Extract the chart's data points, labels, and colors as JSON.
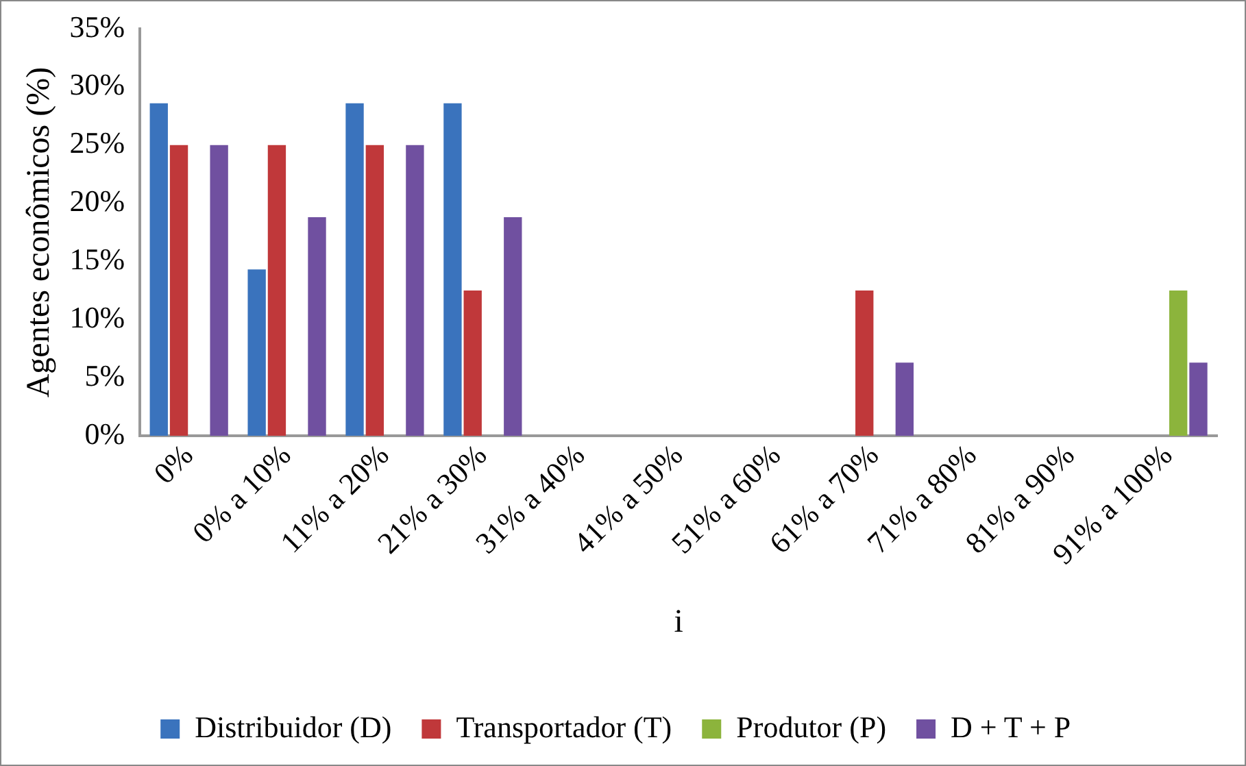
{
  "chart_data": {
    "type": "bar",
    "xlabel": "i",
    "ylabel": "Agentes econômicos (%)",
    "categories": [
      "0%",
      "0% a 10%",
      "11% a 20%",
      "21% a 30%",
      "31% a 40%",
      "41% a 50%",
      "51% a 60%",
      "61% a 70%",
      "71% a 80%",
      "81% a 90%",
      "91% a 100%"
    ],
    "series": [
      {
        "name": "Distribuidor (D)",
        "color": "#3a73bd",
        "values": [
          28.6,
          14.3,
          28.6,
          28.6,
          0,
          0,
          0,
          0,
          0,
          0,
          0
        ]
      },
      {
        "name": "Transportador (T)",
        "color": "#c0383a",
        "values": [
          25,
          25,
          25,
          12.5,
          0,
          0,
          0,
          12.5,
          0,
          0,
          0
        ]
      },
      {
        "name": "Produtor (P)",
        "color": "#8cb43c",
        "values": [
          0,
          0,
          0,
          0,
          0,
          0,
          0,
          0,
          0,
          0,
          12.5
        ]
      },
      {
        "name": "D + T + P",
        "color": "#7050a0",
        "values": [
          25,
          18.8,
          25,
          18.8,
          0,
          0,
          0,
          6.3,
          0,
          0,
          6.3
        ]
      }
    ],
    "ylim": [
      0,
      35
    ],
    "yticks": [
      {
        "value": 0,
        "label": "0%"
      },
      {
        "value": 5,
        "label": "5%"
      },
      {
        "value": 10,
        "label": "10%"
      },
      {
        "value": 15,
        "label": "15%"
      },
      {
        "value": 20,
        "label": "20%"
      },
      {
        "value": 25,
        "label": "25%"
      },
      {
        "value": 30,
        "label": "30%"
      },
      {
        "value": 35,
        "label": "35%"
      }
    ],
    "grid": false,
    "legend": "bottom"
  }
}
